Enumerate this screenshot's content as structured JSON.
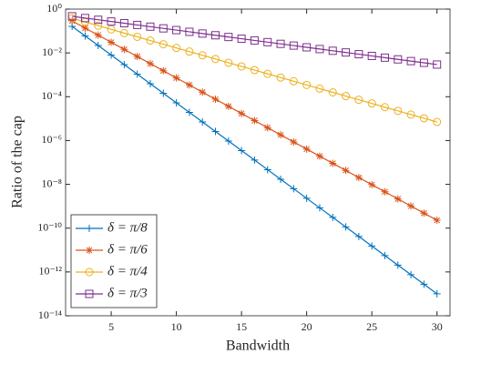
{
  "chart_data": {
    "type": "line",
    "xlabel": "Bandwidth",
    "ylabel": "Ratio of the cap",
    "log_y": true,
    "legend": "lower left",
    "x": [
      2,
      3,
      4,
      5,
      6,
      7,
      8,
      9,
      10,
      11,
      12,
      13,
      14,
      15,
      16,
      17,
      18,
      19,
      20,
      21,
      22,
      23,
      24,
      25,
      26,
      27,
      28,
      29,
      30
    ],
    "xlim": [
      1.5,
      31
    ],
    "xticks": [
      5,
      10,
      15,
      20,
      25,
      30
    ],
    "ylim": [
      1e-14,
      1
    ],
    "yticks": [
      {
        "value": 1,
        "label": "10⁰"
      },
      {
        "value": 0.01,
        "label": "10⁻²"
      },
      {
        "value": 0.0001,
        "label": "10⁻⁴"
      },
      {
        "value": 1e-06,
        "label": "10⁻⁶"
      },
      {
        "value": 1e-08,
        "label": "10⁻⁸"
      },
      {
        "value": 1e-10,
        "label": "10⁻¹⁰"
      },
      {
        "value": 1e-12,
        "label": "10⁻¹²"
      },
      {
        "value": 1e-14,
        "label": "10⁻¹⁴"
      }
    ],
    "series": [
      {
        "name": "δ = π/8",
        "color": "#0072bd",
        "marker": "plus",
        "values": [
          0.162,
          0.0594,
          0.0218,
          0.00798,
          0.00292,
          0.00107,
          0.000393,
          0.000144,
          5.27e-05,
          1.93e-05,
          7.08e-06,
          2.59e-06,
          9.51e-07,
          3.48e-07,
          1.28e-07,
          4.68e-08,
          1.71e-08,
          6.28e-09,
          2.3e-09,
          8.43e-10,
          3.09e-10,
          1.13e-10,
          4.15e-11,
          1.52e-11,
          5.57e-12,
          2.04e-12,
          7.48e-13,
          2.74e-13,
          1e-13
        ]
      },
      {
        "name": "δ = π/6",
        "color": "#d95319",
        "marker": "asterisk",
        "values": [
          0.288,
          0.136,
          0.0646,
          0.0305,
          0.0145,
          0.00684,
          0.00324,
          0.00153,
          0.000724,
          0.000343,
          0.000162,
          7.67e-05,
          3.63e-05,
          1.72e-05,
          8.13e-06,
          3.85e-06,
          1.82e-06,
          8.61e-07,
          4.07e-07,
          1.93e-07,
          9.12e-08,
          4.32e-08,
          2.04e-08,
          9.66e-09,
          4.57e-09,
          2.16e-09,
          1.02e-09,
          4.84e-10,
          2.29e-10
        ]
      },
      {
        "name": "δ = π/4",
        "color": "#edb120",
        "marker": "circle",
        "values": [
          0.38,
          0.258,
          0.175,
          0.118,
          0.0802,
          0.0543,
          0.0368,
          0.0249,
          0.0169,
          0.0115,
          0.00776,
          0.00526,
          0.00356,
          0.00242,
          0.00164,
          0.00111,
          0.000752,
          0.000509,
          0.000345,
          0.000234,
          0.000158,
          0.000107,
          7.28e-05,
          4.93e-05,
          3.34e-05,
          2.26e-05,
          1.53e-05,
          1.04e-05,
          7.05e-06
        ]
      },
      {
        "name": "δ = π/3",
        "color": "#7e2f8e",
        "marker": "square",
        "values": [
          0.468,
          0.39,
          0.326,
          0.272,
          0.227,
          0.189,
          0.158,
          0.132,
          0.11,
          0.0918,
          0.0766,
          0.0639,
          0.0533,
          0.0445,
          0.0371,
          0.031,
          0.0259,
          0.0216,
          0.018,
          0.015,
          0.0125,
          0.0105,
          0.00873,
          0.00728,
          0.00608,
          0.00507,
          0.00423,
          0.00353,
          0.00294
        ]
      }
    ]
  }
}
